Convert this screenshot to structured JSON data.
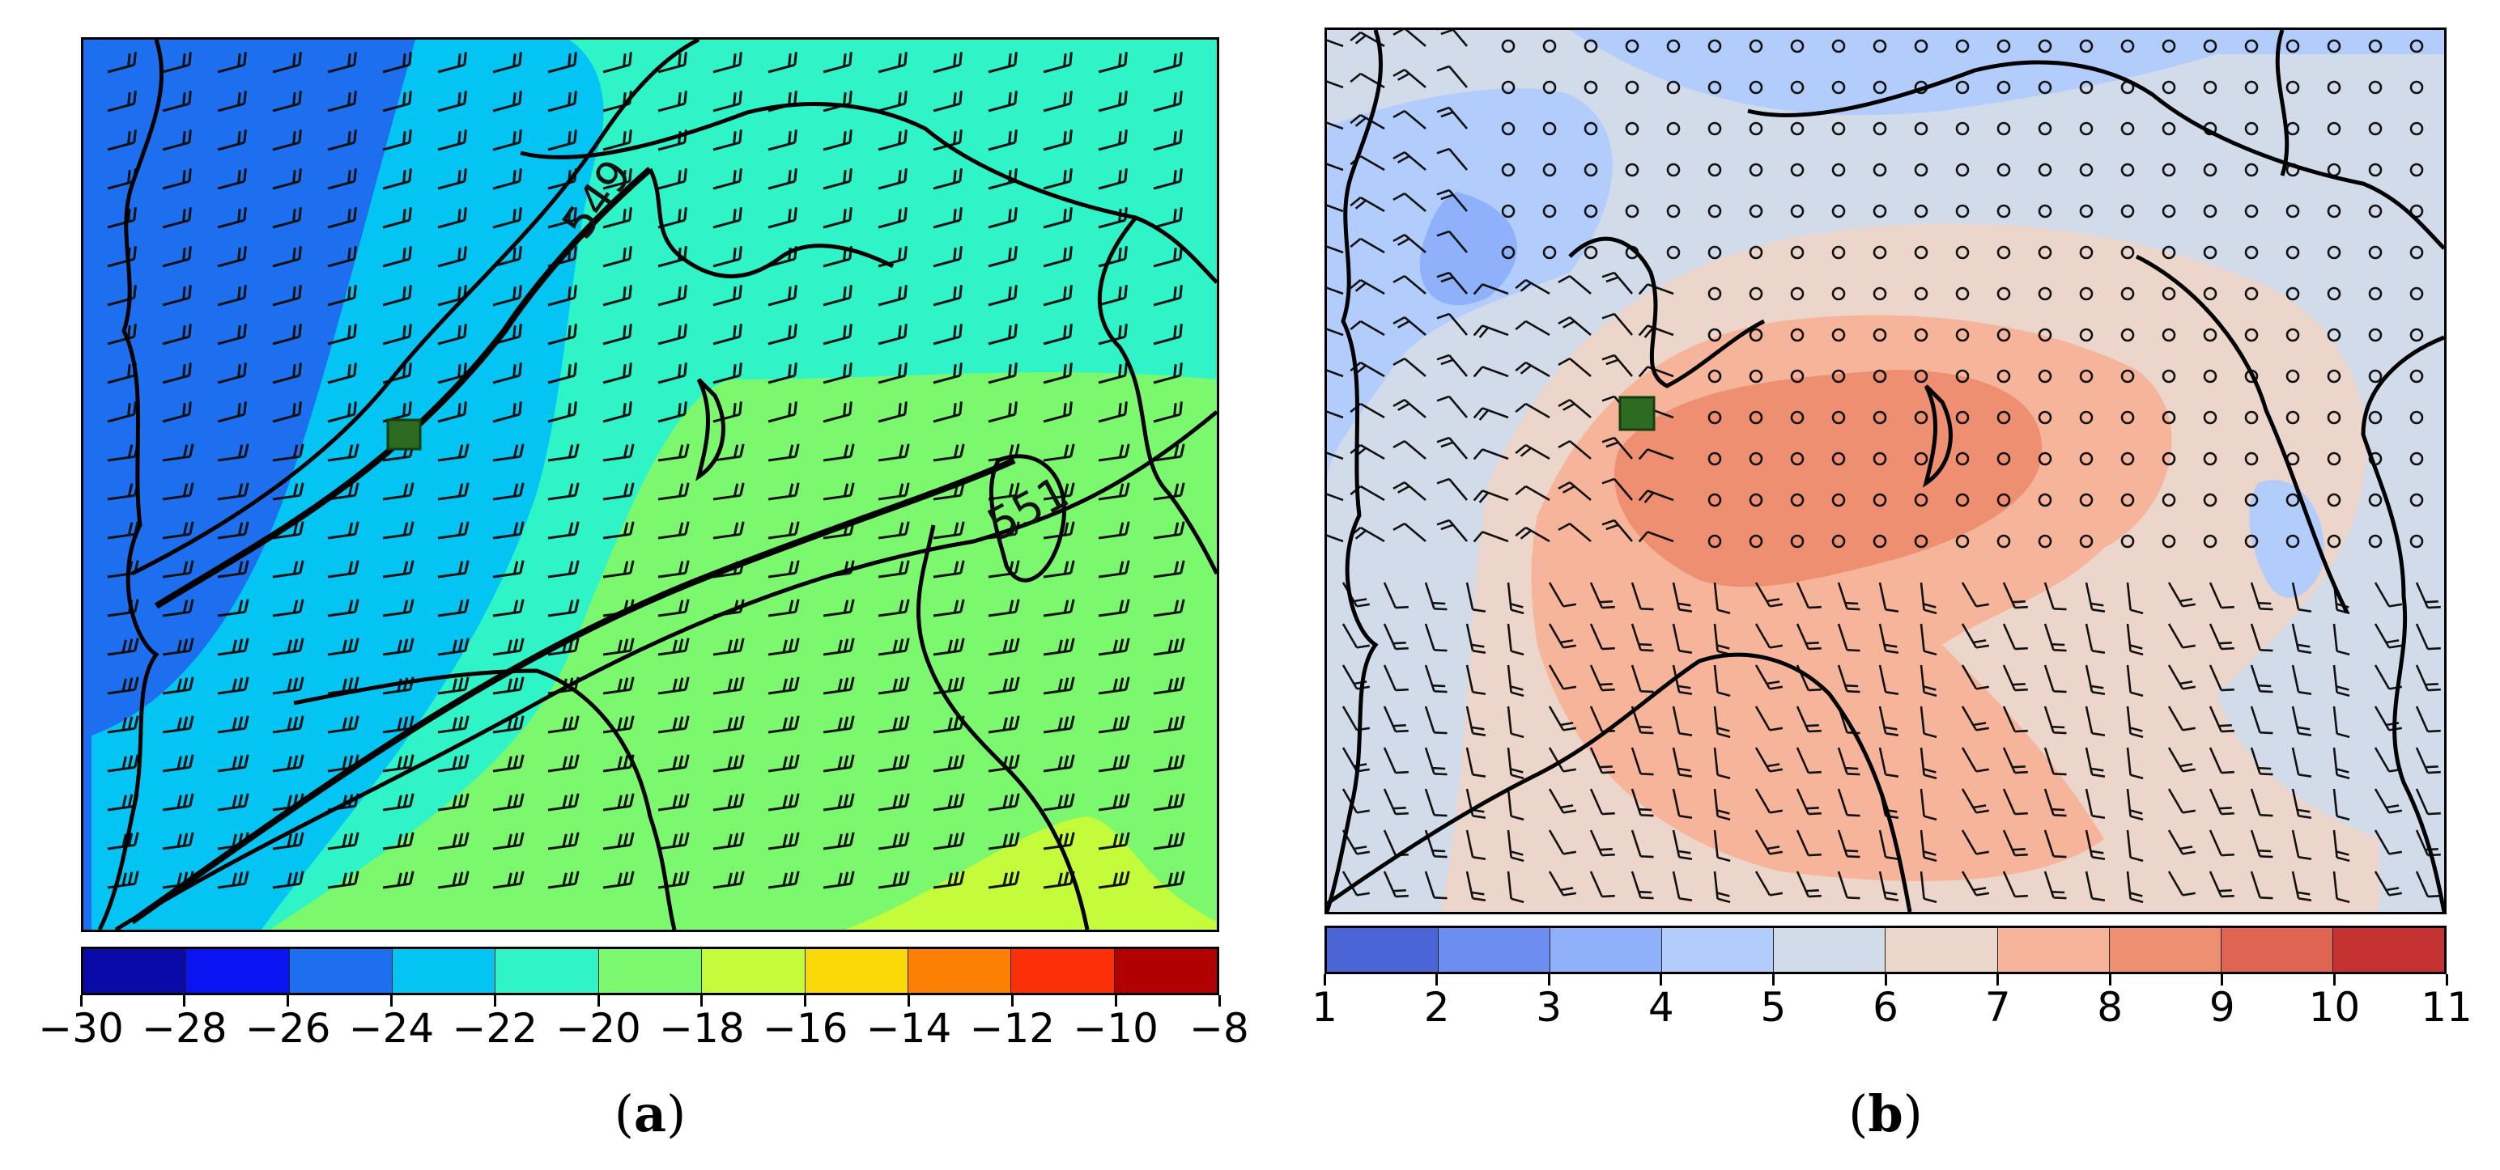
{
  "panels": [
    {
      "id": "a",
      "caption_open": "(",
      "caption_letter": "a",
      "caption_close": ")",
      "contour_labels": [
        "549",
        "551"
      ],
      "colorbar": {
        "levels": [
          -30,
          -28,
          -26,
          -24,
          -22,
          -20,
          -18,
          -16,
          -14,
          -12,
          -10,
          -8
        ],
        "tick_labels": [
          "−30",
          "−28",
          "−26",
          "−24",
          "−22",
          "−20",
          "−18",
          "−16",
          "−14",
          "−12",
          "−10",
          "−8"
        ],
        "colors": [
          "#0a0aa8",
          "#0a14f0",
          "#1e6ef0",
          "#04c4f4",
          "#2ef4c8",
          "#7cf86e",
          "#c4fb3a",
          "#fbd808",
          "#fb8004",
          "#fb3008",
          "#b00000"
        ]
      },
      "field_colors": {
        "band_26": "#1e6ef0",
        "band_24": "#04c4f4",
        "band_22": "#2ef4c8",
        "band_20": "#7cf86e",
        "band_18": "#c4fb3a"
      },
      "marker_color": "#2e6b22"
    },
    {
      "id": "b",
      "caption_open": "(",
      "caption_letter": "b",
      "caption_close": ")",
      "colorbar": {
        "levels": [
          1,
          2,
          3,
          4,
          5,
          6,
          7,
          8,
          9,
          10,
          11
        ],
        "tick_labels": [
          "1",
          "2",
          "3",
          "4",
          "5",
          "6",
          "7",
          "8",
          "9",
          "10",
          "11"
        ],
        "colors": [
          "#4a65d5",
          "#6b8ef0",
          "#8fb0fb",
          "#b2ccfb",
          "#d2dbea",
          "#ecd6cb",
          "#f6b59a",
          "#ef8f72",
          "#df6451",
          "#c53030"
        ]
      },
      "field_colors": {
        "bg_5": "#d2dbea",
        "blue_4": "#b2ccfb",
        "blue_3": "#8fb0fb",
        "warm_7": "#ecd6cb",
        "warm_8": "#f6b59a",
        "warm_9": "#ef8f72"
      },
      "marker_color": "#2e6b22"
    }
  ]
}
